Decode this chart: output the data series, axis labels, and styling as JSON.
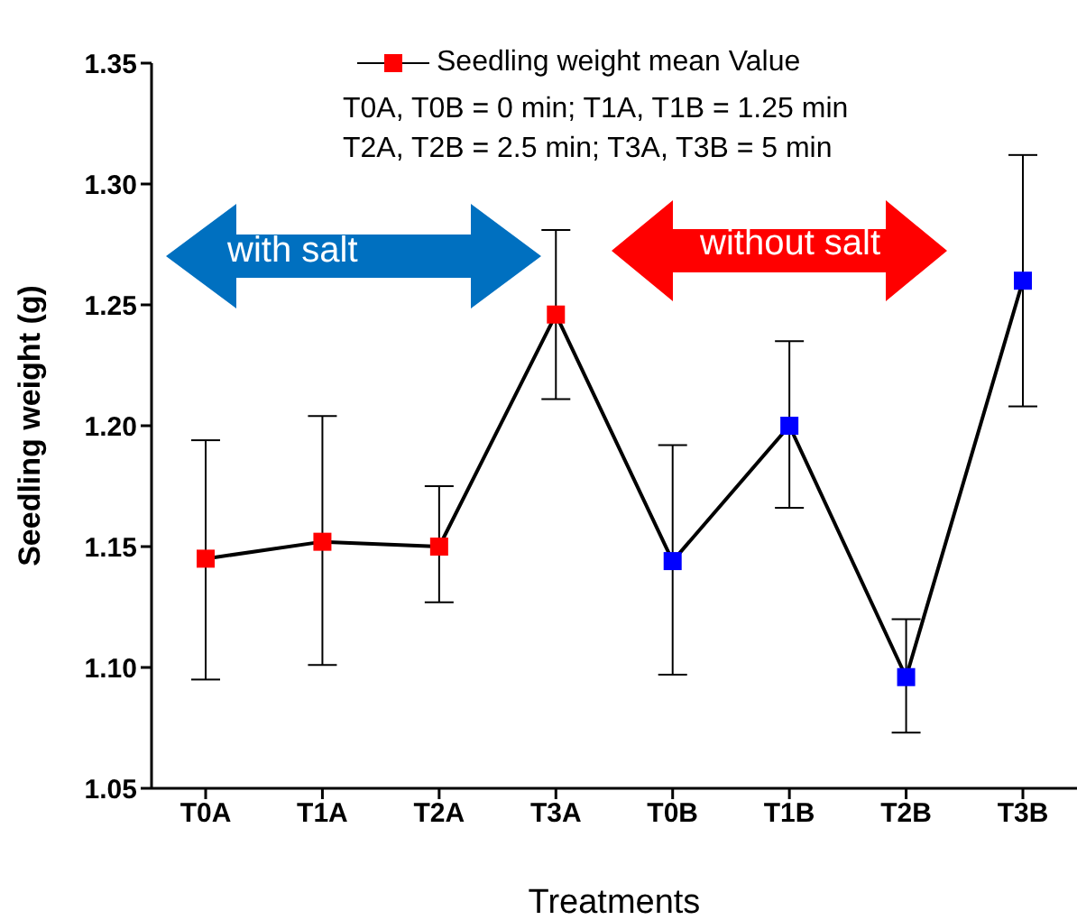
{
  "chart_data": {
    "type": "line",
    "xlabel": "Treatments",
    "ylabel": "Seedling weight (g)",
    "categories": [
      "T0A",
      "T1A",
      "T2A",
      "T3A",
      "T0B",
      "T1B",
      "T2B",
      "T3B"
    ],
    "series": [
      {
        "name": "Seedling weight mean Value",
        "color": "#000000",
        "colors": [
          "#ff0000",
          "#ff0000",
          "#ff0000",
          "#ff0000",
          "#0000ff",
          "#0000ff",
          "#0000ff",
          "#0000ff"
        ],
        "values": [
          1.145,
          1.152,
          1.15,
          1.246,
          1.144,
          1.2,
          1.096,
          1.26
        ],
        "errors": [
          [
            1.095,
            1.194
          ],
          [
            1.101,
            1.204
          ],
          [
            1.127,
            1.175
          ],
          [
            1.211,
            1.281
          ],
          [
            1.097,
            1.192
          ],
          [
            1.166,
            1.235
          ],
          [
            1.073,
            1.12
          ],
          [
            1.208,
            1.312
          ]
        ]
      }
    ],
    "ylim": [
      1.05,
      1.35
    ],
    "yticks": [
      1.05,
      {
        "value": 1.1,
        "label": "1.10"
      },
      1.15,
      {
        "value": 1.2,
        "label": "1.20"
      },
      1.25,
      {
        "value": 1.3,
        "label": "1.30"
      },
      1.35
    ],
    "marker": "square",
    "line_style": "solid",
    "grid": false,
    "legend": "top",
    "annotations": [
      "T0A, T0B = 0 min; T1A, T1B = 1.25 min",
      "T2A, T2B = 2.5 min; T3A, T3B = 5 min",
      "with salt",
      "without salt"
    ]
  }
}
